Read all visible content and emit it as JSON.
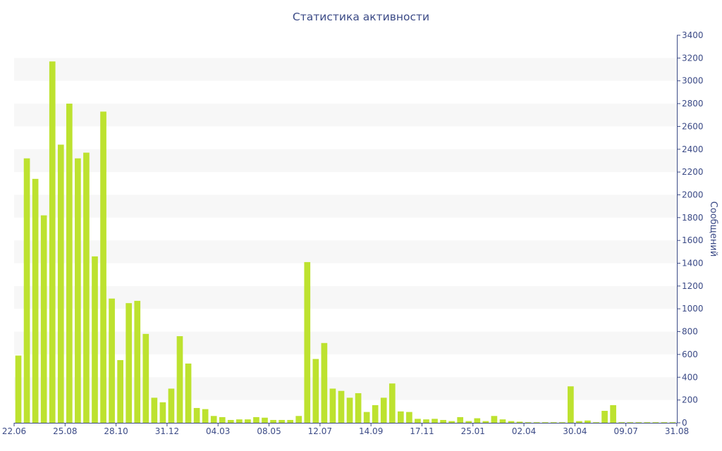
{
  "chart_data": {
    "type": "bar",
    "title": "Статистика активности",
    "xlabel": "",
    "ylabel": "Сообщений",
    "ylim": [
      0,
      3400
    ],
    "y_ticks": [
      0,
      200,
      400,
      600,
      800,
      1000,
      1200,
      1400,
      1600,
      1800,
      2000,
      2200,
      2400,
      2600,
      2800,
      3000,
      3200,
      3400
    ],
    "grid": "alternating horizontal bands",
    "x_tick_labels": [
      {
        "index": 0,
        "label": "22.06"
      },
      {
        "index": 6,
        "label": "25.08"
      },
      {
        "index": 12,
        "label": "28.10"
      },
      {
        "index": 18,
        "label": "31.12"
      },
      {
        "index": 24,
        "label": "04.03"
      },
      {
        "index": 30,
        "label": "08.05"
      },
      {
        "index": 36,
        "label": "12.07"
      },
      {
        "index": 42,
        "label": "14.09"
      },
      {
        "index": 48,
        "label": "17.11"
      },
      {
        "index": 54,
        "label": "25.01"
      },
      {
        "index": 60,
        "label": "02.04"
      },
      {
        "index": 66,
        "label": "30.04"
      },
      {
        "index": 72,
        "label": "09.07"
      },
      {
        "index": 78,
        "label": "31.08"
      }
    ],
    "series": [
      {
        "values": [
          590,
          2320,
          2140,
          1820,
          3170,
          2440,
          2800,
          2320,
          2370,
          1460,
          2730,
          1090,
          550,
          1050,
          1070,
          780,
          220,
          180,
          300,
          760,
          520,
          130,
          120,
          60,
          50,
          25,
          30,
          30,
          50,
          45,
          25,
          25,
          25,
          60,
          1410,
          560,
          700,
          300,
          280,
          220,
          260,
          95,
          155,
          220,
          345,
          100,
          95,
          35,
          30,
          35,
          25,
          15,
          50,
          15,
          40,
          15,
          60,
          30,
          15,
          10,
          5,
          5,
          5,
          5,
          5,
          320,
          15,
          20,
          5,
          105,
          155,
          5,
          5,
          5,
          5,
          5,
          5,
          5
        ]
      }
    ],
    "bar_color": "#bde22f"
  }
}
